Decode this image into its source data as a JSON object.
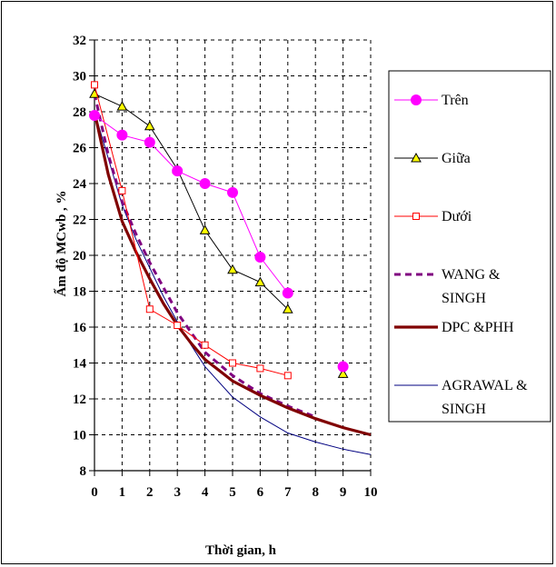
{
  "chart_data": {
    "type": "line",
    "title": "",
    "xlabel": "Thời gian, h",
    "ylabel": "Ẩm độ MCwb , %",
    "xlim": [
      0,
      10
    ],
    "ylim": [
      8,
      32
    ],
    "xticks": [
      0,
      1,
      2,
      3,
      4,
      5,
      6,
      7,
      8,
      9,
      10
    ],
    "yticks": [
      8,
      10,
      12,
      14,
      16,
      18,
      20,
      22,
      24,
      26,
      28,
      30,
      32
    ],
    "grid": "dashed-vertical-and-horizontal",
    "legend_position": "right",
    "series": [
      {
        "name": "Trên",
        "style": "solid-with-markers",
        "marker": "circle-filled",
        "color": "#ff00ff",
        "x": [
          0,
          1,
          2,
          3,
          4,
          5,
          6,
          7
        ],
        "y": [
          27.8,
          26.7,
          26.3,
          24.7,
          24.0,
          23.5,
          19.9,
          17.9
        ],
        "extra_points": [
          {
            "x": 9,
            "y": 13.8
          }
        ]
      },
      {
        "name": "Giữa",
        "style": "solid-with-markers",
        "marker": "triangle",
        "color": "#000000",
        "marker_fill": "#ffff00",
        "x": [
          0,
          1,
          2,
          3,
          4,
          5,
          6,
          7
        ],
        "y": [
          29.0,
          28.3,
          27.2,
          24.8,
          21.4,
          19.2,
          18.5,
          17.0
        ],
        "extra_points": [
          {
            "x": 9,
            "y": 13.4
          }
        ]
      },
      {
        "name": "Dưới",
        "style": "solid-with-markers",
        "marker": "square-open",
        "color": "#ff0000",
        "x": [
          0,
          1,
          2,
          3,
          4,
          5,
          6,
          7
        ],
        "y": [
          29.5,
          23.6,
          17.0,
          16.1,
          15.0,
          14.0,
          13.7,
          13.3
        ],
        "extra_points": [
          {
            "x": 9,
            "y": 13.8
          }
        ]
      },
      {
        "name": "WANG & SINGH",
        "style": "dashed",
        "color": "#800080",
        "x": [
          0,
          0.5,
          1,
          1.5,
          2,
          2.5,
          3,
          3.5,
          4,
          5,
          6,
          7,
          8
        ],
        "y": [
          29.0,
          25.6,
          23.0,
          21.2,
          19.6,
          18.2,
          16.8,
          15.7,
          14.6,
          13.3,
          12.3,
          11.6,
          11.0
        ]
      },
      {
        "name": "DPC &PHH",
        "style": "solid-thick",
        "color": "#800000",
        "x": [
          0,
          0.5,
          1,
          1.5,
          2,
          2.5,
          3,
          3.5,
          4,
          4.5,
          5,
          6,
          7,
          8,
          9,
          10
        ],
        "y": [
          28.0,
          24.5,
          21.9,
          20.2,
          18.7,
          17.3,
          16.1,
          15.1,
          14.2,
          13.6,
          13.0,
          12.2,
          11.5,
          10.9,
          10.4,
          10.0
        ]
      },
      {
        "name": "AGRAWAL & SINGH",
        "style": "solid-thin",
        "color": "#000080",
        "x": [
          0,
          0.5,
          1,
          1.5,
          2,
          2.5,
          3,
          3.5,
          4,
          5,
          6,
          7,
          8,
          9,
          10
        ],
        "y": [
          28.0,
          25.4,
          22.8,
          20.9,
          19.3,
          17.7,
          16.3,
          15.0,
          13.8,
          12.1,
          11.0,
          10.1,
          9.6,
          9.2,
          8.9
        ]
      }
    ],
    "legend_lines": [
      [
        "Trên"
      ],
      [
        "Giữa"
      ],
      [
        "Dưới"
      ],
      [
        "WANG &",
        "SINGH"
      ],
      [
        "DPC &PHH"
      ],
      [
        "AGRAWAL &",
        "SINGH"
      ]
    ]
  }
}
